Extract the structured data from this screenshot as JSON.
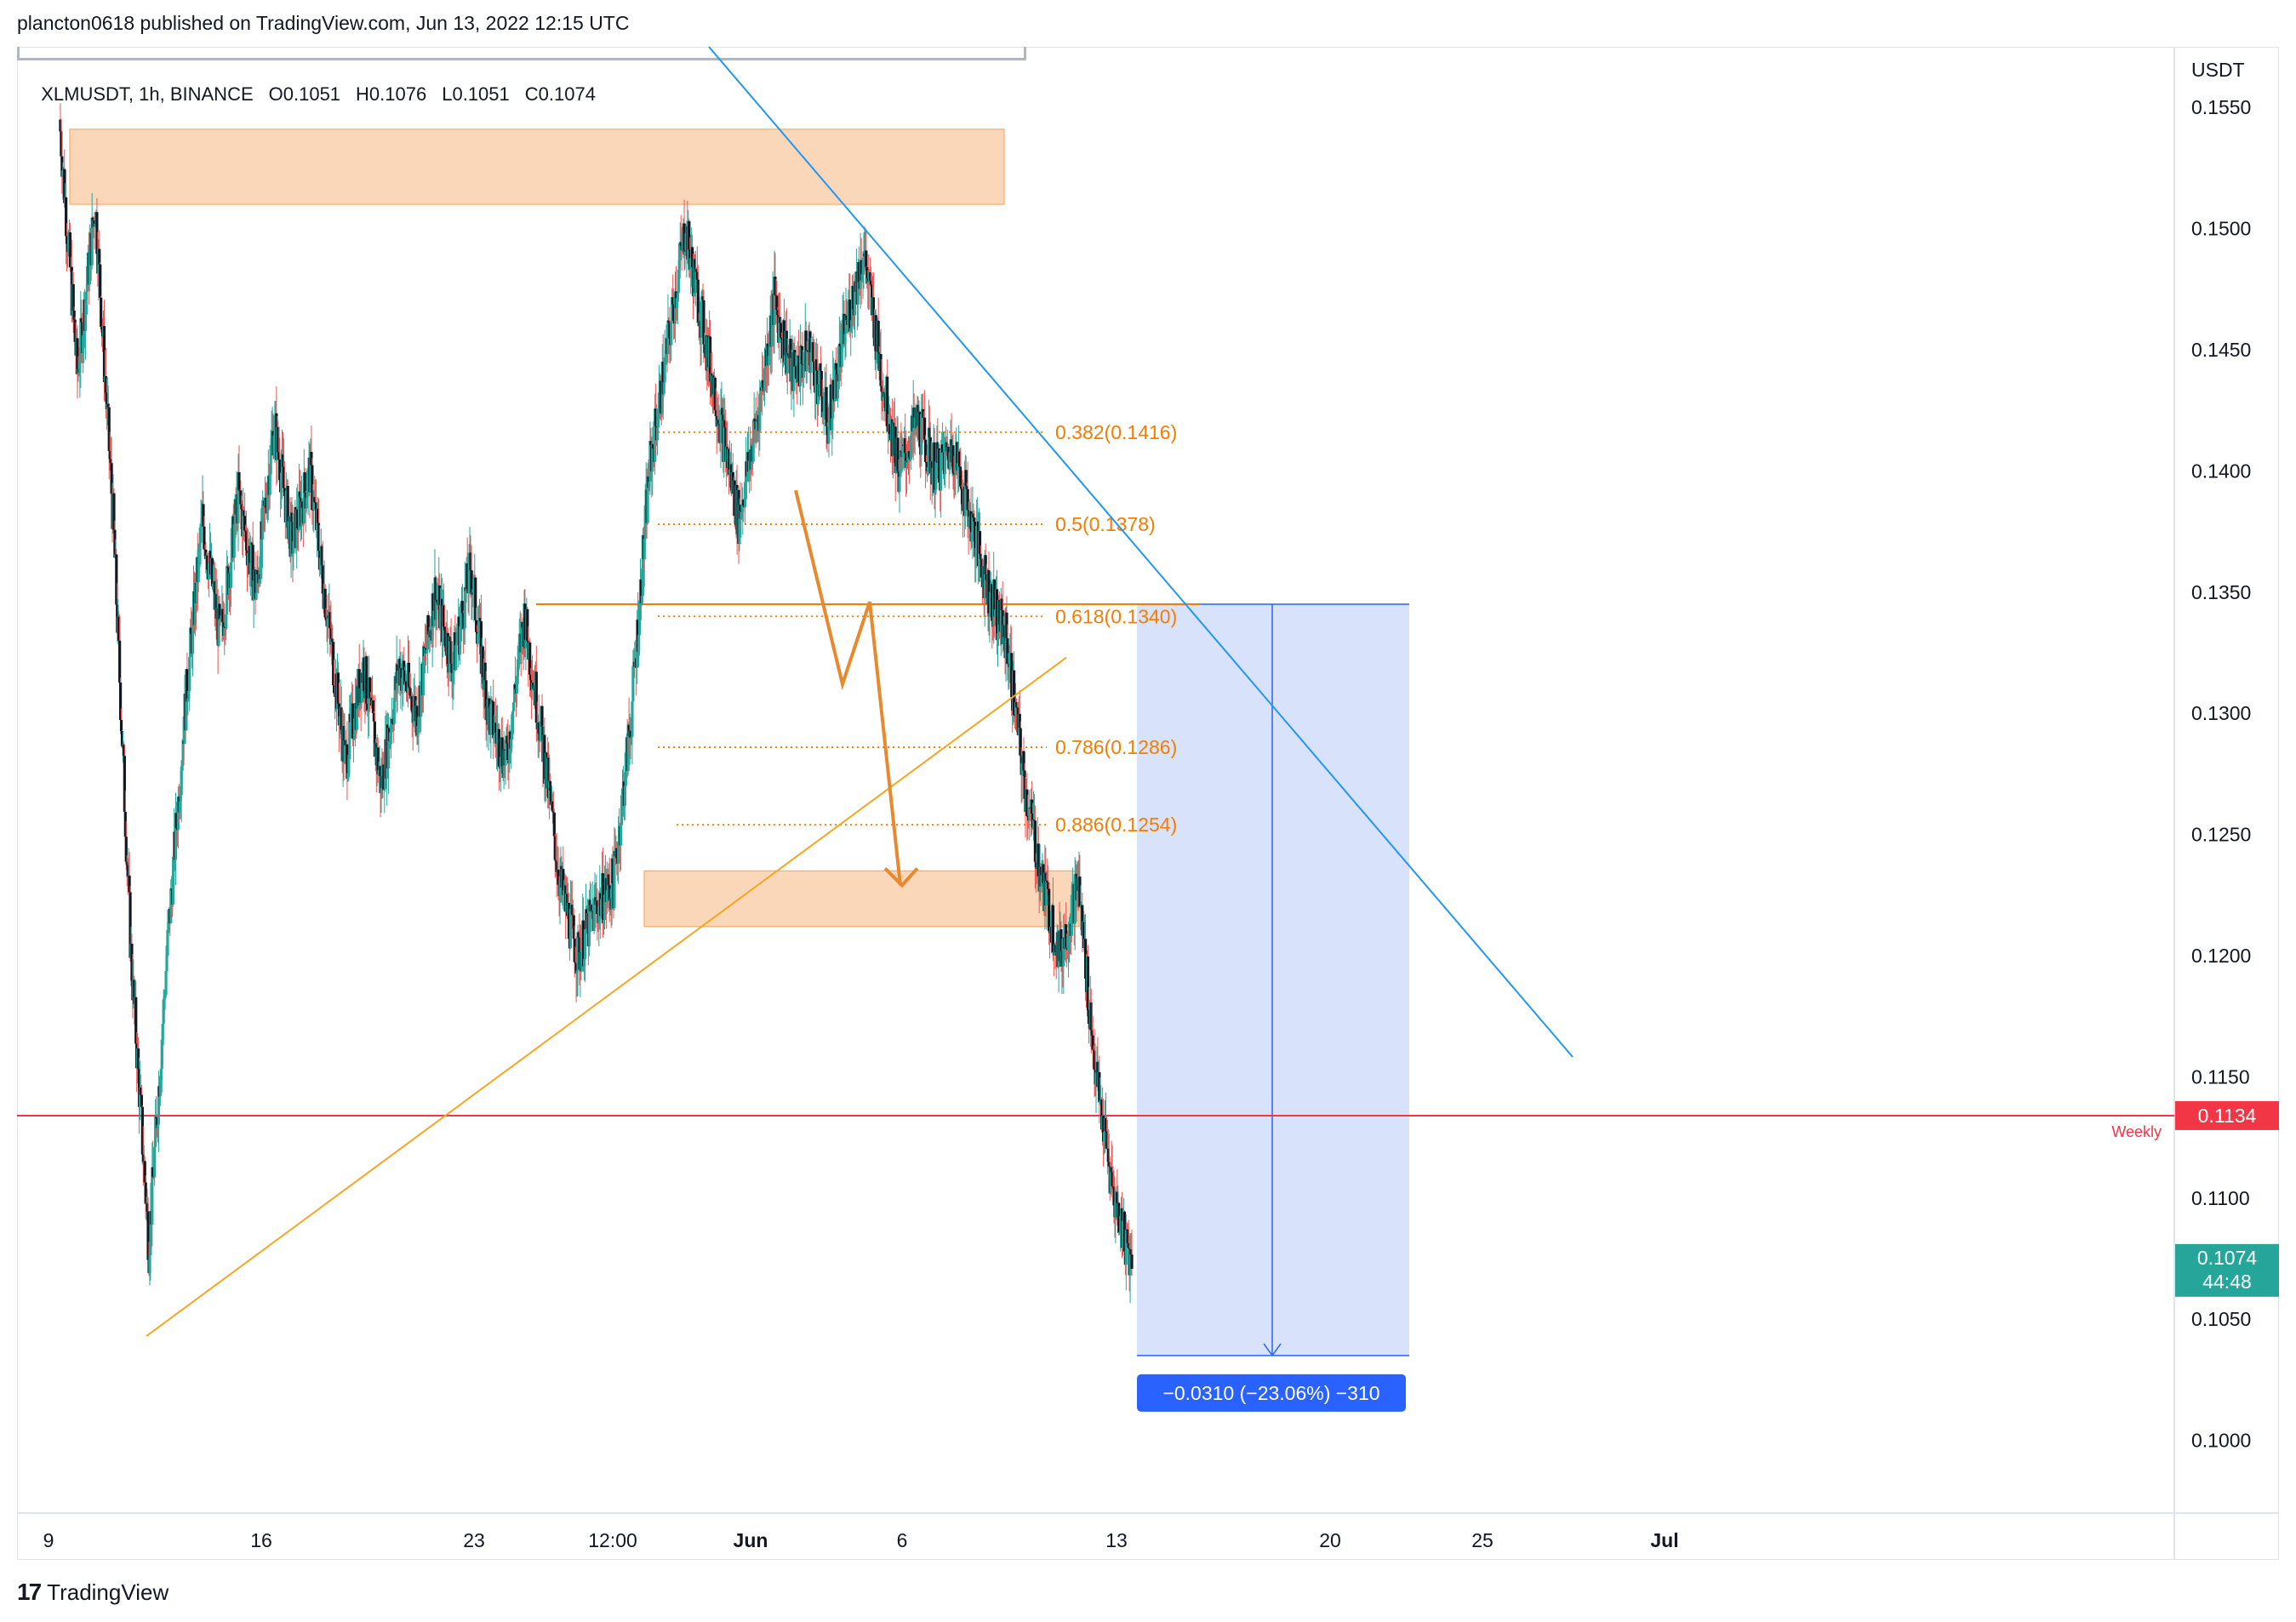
{
  "header": {
    "publish_line": "plancton0618 published on TradingView.com, Jun 13, 2022 12:15 UTC"
  },
  "legend": {
    "symbol": "XLMUSDT, 1h, BINANCE",
    "open": "O0.1051",
    "high": "H0.1076",
    "low": "L0.1051",
    "close": "C0.1074"
  },
  "footer": {
    "logo_mark": "17",
    "logo_text": "TradingView"
  },
  "colors": {
    "candle_up": "#26a69a",
    "candle_down": "#ef5350",
    "fib": "#f57c00",
    "zone": "#f8c69a",
    "trendline_blue": "#2196f3",
    "weekly_line": "#f23645",
    "measure_fill": "#d4e0fb",
    "measure_label": "#2962ff",
    "last_price_badge": "#26a69a"
  },
  "chart_data": {
    "type": "candlestick",
    "symbol": "XLMUSDT",
    "interval": "1h",
    "exchange": "BINANCE",
    "y_axis_unit": "USDT",
    "ylim": [
      0.097,
      0.1575
    ],
    "y_ticks": [
      "0.1550",
      "0.1500",
      "0.1450",
      "0.1400",
      "0.1350",
      "0.1300",
      "0.1250",
      "0.1200",
      "0.1150",
      "0.1100",
      "0.1050",
      "0.1000"
    ],
    "x_ticks": [
      "9",
      "16",
      "23",
      "12:00",
      "Jun",
      "6",
      "13",
      "20",
      "25",
      "Jul"
    ],
    "price_path": [
      [
        0,
        0.1545
      ],
      [
        1,
        0.144
      ],
      [
        2,
        0.151
      ],
      [
        3,
        0.138
      ],
      [
        4,
        0.12
      ],
      [
        5,
        0.108
      ],
      [
        6,
        0.12
      ],
      [
        7,
        0.13
      ],
      [
        8,
        0.138
      ],
      [
        9,
        0.133
      ],
      [
        10,
        0.139
      ],
      [
        11,
        0.135
      ],
      [
        12,
        0.142
      ],
      [
        13,
        0.137
      ],
      [
        14,
        0.14
      ],
      [
        15,
        0.134
      ],
      [
        16,
        0.128
      ],
      [
        17,
        0.132
      ],
      [
        18,
        0.127
      ],
      [
        19,
        0.132
      ],
      [
        20,
        0.13
      ],
      [
        21,
        0.135
      ],
      [
        22,
        0.132
      ],
      [
        23,
        0.136
      ],
      [
        24,
        0.13
      ],
      [
        25,
        0.128
      ],
      [
        26,
        0.134
      ],
      [
        27,
        0.129
      ],
      [
        28,
        0.123
      ],
      [
        29,
        0.12
      ],
      [
        30,
        0.122
      ],
      [
        31,
        0.123
      ],
      [
        32,
        0.13
      ],
      [
        33,
        0.14
      ],
      [
        34,
        0.145
      ],
      [
        35,
        0.15
      ],
      [
        36,
        0.146
      ],
      [
        37,
        0.142
      ],
      [
        38,
        0.138
      ],
      [
        39,
        0.142
      ],
      [
        40,
        0.147
      ],
      [
        41,
        0.144
      ],
      [
        42,
        0.145
      ],
      [
        43,
        0.142
      ],
      [
        44,
        0.146
      ],
      [
        45,
        0.149
      ],
      [
        46,
        0.144
      ],
      [
        47,
        0.14
      ],
      [
        48,
        0.142
      ],
      [
        49,
        0.14
      ],
      [
        50,
        0.141
      ],
      [
        51,
        0.138
      ],
      [
        52,
        0.135
      ],
      [
        53,
        0.133
      ],
      [
        54,
        0.127
      ],
      [
        55,
        0.123
      ],
      [
        56,
        0.12
      ],
      [
        57,
        0.123
      ],
      [
        58,
        0.115
      ],
      [
        59,
        0.11
      ],
      [
        60,
        0.1074
      ]
    ],
    "zones": [
      {
        "from": 0.151,
        "to": 0.1541
      },
      {
        "from": 0.1212,
        "to": 0.1235
      }
    ],
    "fib_levels": [
      {
        "label": "0.382(0.1416)",
        "value": 0.1416
      },
      {
        "label": "0.5(0.1378)",
        "value": 0.1378
      },
      {
        "label": "0.618(0.1340)",
        "value": 0.134
      },
      {
        "label": "0.786(0.1286)",
        "value": 0.1286
      },
      {
        "label": "0.886(0.1254)",
        "value": 0.1254
      }
    ],
    "horizontal_line": {
      "value": 0.1345
    },
    "weekly_level": {
      "label": "Weekly",
      "value": 0.1134,
      "badge": "0.1134"
    },
    "last_price": {
      "value": "0.1074",
      "countdown": "44:48"
    },
    "measure": {
      "top": 0.1345,
      "bottom": 0.1035,
      "label": "−0.0310 (−23.06%) −310"
    }
  }
}
